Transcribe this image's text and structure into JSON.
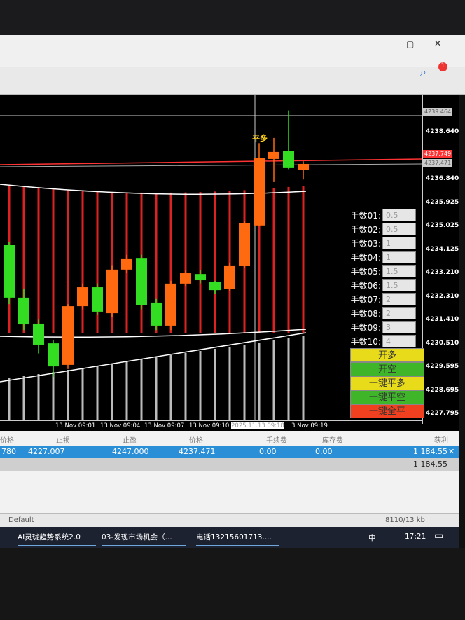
{
  "chart": {
    "price_labels": [
      "4238.640",
      "4236.840",
      "4235.925",
      "4235.025",
      "4234.125",
      "4233.210",
      "4232.310",
      "4231.410",
      "4230.510",
      "4229.595",
      "4228.695",
      "4227.795"
    ],
    "price_tags": {
      "top": "4239.464",
      "red": "4237.749",
      "gray": "4237.471"
    },
    "time_labels": [
      "13 Nov 09:01",
      "13 Nov 09:04",
      "13 Nov 09:07",
      "13 Nov 09:10",
      "13 Nov 09:13",
      "2025.11.13 09:18",
      "3 Nov 09:19"
    ],
    "signal_label": "平多",
    "colors": {
      "bull": "#33dd22",
      "bear": "#ff6a10",
      "indicator": "#dd2222",
      "indicator_low": "#bbbbbb",
      "line_red": "#ff3333"
    },
    "candles": [
      {
        "o": 4232.25,
        "c": 4234.27,
        "h": 4234.4,
        "l": 4232.0
      },
      {
        "o": 4231.22,
        "c": 4232.25,
        "h": 4232.6,
        "l": 4231.0
      },
      {
        "o": 4230.44,
        "c": 4231.25,
        "h": 4231.4,
        "l": 4230.1
      },
      {
        "o": 4229.6,
        "c": 4230.49,
        "h": 4230.6,
        "l": 4229.2
      },
      {
        "o": 4231.92,
        "c": 4229.66,
        "h": 4232.0,
        "l": 4229.5
      },
      {
        "o": 4232.65,
        "c": 4231.92,
        "h": 4232.8,
        "l": 4231.8
      },
      {
        "o": 4231.71,
        "c": 4232.65,
        "h": 4232.8,
        "l": 4231.6
      },
      {
        "o": 4233.33,
        "c": 4231.65,
        "h": 4233.5,
        "l": 4231.5
      },
      {
        "o": 4233.76,
        "c": 4233.33,
        "h": 4233.9,
        "l": 4233.2
      },
      {
        "o": 4231.95,
        "c": 4233.78,
        "h": 4233.9,
        "l": 4231.8
      },
      {
        "o": 4231.17,
        "c": 4232.06,
        "h": 4232.2,
        "l": 4231.0
      },
      {
        "o": 4232.79,
        "c": 4231.17,
        "h": 4232.9,
        "l": 4231.0
      },
      {
        "o": 4233.19,
        "c": 4232.79,
        "h": 4233.3,
        "l": 4232.7
      },
      {
        "o": 4232.92,
        "c": 4233.16,
        "h": 4233.3,
        "l": 4232.8
      },
      {
        "o": 4232.54,
        "c": 4232.84,
        "h": 4232.9,
        "l": 4232.4
      },
      {
        "o": 4233.49,
        "c": 4232.57,
        "h": 4233.6,
        "l": 4232.5
      },
      {
        "o": 4235.13,
        "c": 4233.46,
        "h": 4235.2,
        "l": 4233.4
      },
      {
        "o": 4237.64,
        "c": 4235.03,
        "h": 4238.2,
        "l": 4235.0
      },
      {
        "o": 4237.86,
        "c": 4237.59,
        "h": 4238.4,
        "l": 4236.7
      },
      {
        "o": 4237.24,
        "c": 4237.91,
        "h": 4239.46,
        "l": 4237.2
      },
      {
        "o": 4237.4,
        "c": 4237.18,
        "h": 4237.5,
        "l": 4236.8
      }
    ]
  },
  "panel": {
    "lots": [
      {
        "label": "手数01:",
        "value": "0.5"
      },
      {
        "label": "手数02:",
        "value": "0.5"
      },
      {
        "label": "手数03:",
        "value": "1"
      },
      {
        "label": "手数04:",
        "value": "1"
      },
      {
        "label": "手数05:",
        "value": "1.5"
      },
      {
        "label": "手数06:",
        "value": "1.5"
      },
      {
        "label": "手数07:",
        "value": "2"
      },
      {
        "label": "手数08:",
        "value": "2"
      },
      {
        "label": "手数09:",
        "value": "3"
      },
      {
        "label": "手数10:",
        "value": "4"
      }
    ],
    "buttons": [
      {
        "label": "开多",
        "color": "#e8dc1a"
      },
      {
        "label": "开空",
        "color": "#3fb52a"
      },
      {
        "label": "一键平多",
        "color": "#e8dc1a"
      },
      {
        "label": "一键平空",
        "color": "#3fb52a"
      },
      {
        "label": "一键全平",
        "color": "#f0401f"
      }
    ]
  },
  "terminal": {
    "headers": [
      "价格",
      "止损",
      "止盈",
      "价格",
      "手续费",
      "库存费",
      "获利"
    ],
    "row": [
      "780",
      "4227.007",
      "4247.000",
      "4237.471",
      "0.00",
      "0.00",
      "1 184.55"
    ],
    "total": "1 184.55",
    "status_profile": "Default",
    "status_traffic": "8110/13 kb"
  },
  "taskbar": {
    "items": [
      "AI灵珑趋势系统2.0",
      "03-发现市场机会（...",
      "电话13215601713...."
    ],
    "ime": "中",
    "clock": "17:21"
  }
}
